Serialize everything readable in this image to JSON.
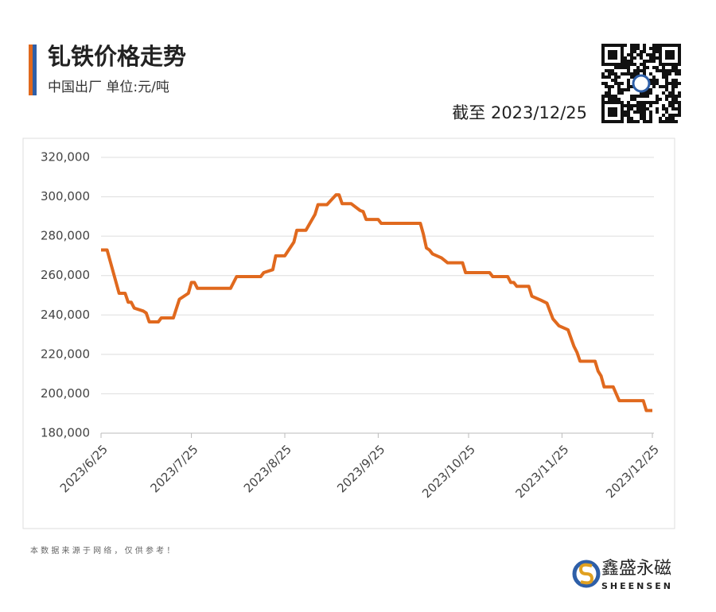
{
  "chart_data": {
    "type": "line",
    "title": "钆铁价格走势",
    "subtitle": "中国出厂  单位:元/吨",
    "date_note": "截至 2023/12/25",
    "source_note": "本 数 据 来 源 于 网 络 ， 仅 供 参 考 ！",
    "brand": "鑫盛永磁",
    "brand_en": "SHEENSEN",
    "color": "#e0691e",
    "grid": true,
    "x": [
      "2023/6/25",
      "2023/6/27",
      "2023/7/1",
      "2023/7/3",
      "2023/7/4",
      "2023/7/5",
      "2023/7/6",
      "2023/7/9",
      "2023/7/10",
      "2023/7/11",
      "2023/7/14",
      "2023/7/15",
      "2023/7/19",
      "2023/7/21",
      "2023/7/24",
      "2023/7/25",
      "2023/7/26",
      "2023/7/27",
      "2023/8/7",
      "2023/8/9",
      "2023/8/17",
      "2023/8/18",
      "2023/8/21",
      "2023/8/22",
      "2023/8/25",
      "2023/8/28",
      "2023/8/29",
      "2023/9/1",
      "2023/9/4",
      "2023/9/5",
      "2023/9/8",
      "2023/9/11",
      "2023/9/12",
      "2023/9/13",
      "2023/9/16",
      "2023/9/19",
      "2023/9/20",
      "2023/9/21",
      "2023/9/25",
      "2023/9/26",
      "2023/10/9",
      "2023/10/10",
      "2023/10/11",
      "2023/10/12",
      "2023/10/13",
      "2023/10/16",
      "2023/10/18",
      "2023/10/23",
      "2023/10/24",
      "2023/11/1",
      "2023/11/2",
      "2023/11/7",
      "2023/11/8",
      "2023/11/9",
      "2023/11/10",
      "2023/11/14",
      "2023/11/15",
      "2023/11/18",
      "2023/11/20",
      "2023/11/21",
      "2023/11/22",
      "2023/11/24",
      "2023/11/27",
      "2023/11/29",
      "2023/11/30",
      "2023/12/1",
      "2023/12/6",
      "2023/12/7",
      "2023/12/8",
      "2023/12/9",
      "2023/12/12",
      "2023/12/14",
      "2023/12/22",
      "2023/12/23",
      "2023/12/25"
    ],
    "values": [
      273000,
      273000,
      251000,
      251000,
      246500,
      246500,
      243500,
      242000,
      241000,
      236500,
      236500,
      238500,
      238500,
      248000,
      251000,
      256500,
      256500,
      253500,
      253500,
      259500,
      259500,
      261500,
      263000,
      270000,
      270000,
      277000,
      283000,
      283000,
      291000,
      296000,
      296000,
      301000,
      301000,
      296500,
      296500,
      293000,
      292500,
      288500,
      288500,
      286500,
      286500,
      281000,
      274000,
      273000,
      271000,
      269000,
      266500,
      266500,
      261500,
      261500,
      259500,
      259500,
      256500,
      256500,
      254500,
      254500,
      249500,
      247500,
      246000,
      242000,
      238000,
      234500,
      232500,
      224000,
      221000,
      216500,
      216500,
      211500,
      209000,
      203500,
      203500,
      196500,
      196500,
      191500,
      191500
    ],
    "xlim": [
      "2023/6/25",
      "2023/12/25"
    ],
    "xticks": [
      "2023/6/25",
      "2023/7/25",
      "2023/8/25",
      "2023/9/25",
      "2023/10/25",
      "2023/11/25",
      "2023/12/25"
    ],
    "ylim": [
      180000,
      320000
    ],
    "yticks": [
      {
        "value": 180000,
        "label": "180,000"
      },
      {
        "value": 200000,
        "label": "200,000"
      },
      {
        "value": 220000,
        "label": "220,000"
      },
      {
        "value": 240000,
        "label": "240,000"
      },
      {
        "value": 260000,
        "label": "260,000"
      },
      {
        "value": 280000,
        "label": "280,000"
      },
      {
        "value": 300000,
        "label": "300,000"
      },
      {
        "value": 320000,
        "label": "320,000"
      }
    ]
  }
}
